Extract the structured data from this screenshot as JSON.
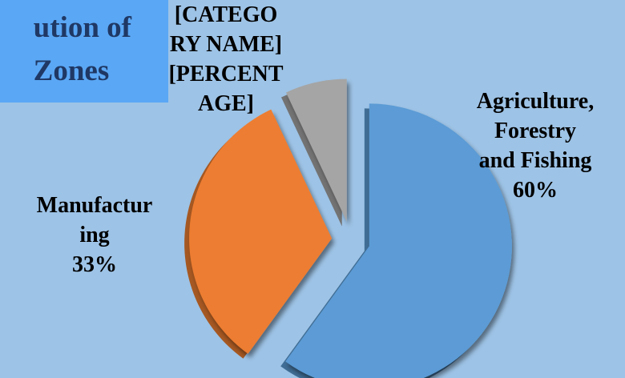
{
  "chart_data": {
    "type": "pie",
    "title_lines": [
      "ution of",
      "Zones"
    ],
    "slices": [
      {
        "name": "Agriculture, Forestry and Fishing",
        "percent": 60,
        "label_lines": [
          "Agriculture,",
          "Forestry",
          "and Fishing",
          "60%"
        ],
        "color": "#5b9bd5"
      },
      {
        "name": "Manufacturing",
        "percent": 33,
        "label_lines": [
          "Manufactur",
          "ing",
          "33%"
        ],
        "color": "#ed7d31"
      },
      {
        "name": "[CATEGORY NAME]",
        "percent": 7,
        "label_lines": [
          "[CATEGO",
          "RY NAME]",
          "[PERCENT",
          "AGE]"
        ],
        "color": "#a5a5a5"
      }
    ],
    "background_color": "#9dc3e6",
    "title_box_color": "#5aa7f5",
    "title_color": "#1f3864",
    "legend": "none"
  }
}
